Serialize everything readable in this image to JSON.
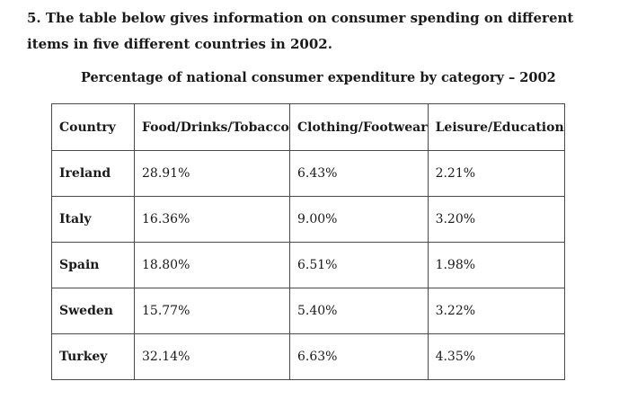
{
  "question": {
    "text": "5. The table below gives information on consumer spending on different items in five different countries in 2002."
  },
  "chart_data": {
    "type": "table",
    "title": "Percentage of national consumer expenditure by category – 2002",
    "columns": [
      "Country",
      "Food/Drinks/Tobacco",
      "Clothing/Footwear",
      "Leisure/Education"
    ],
    "rows": [
      {
        "country": "Ireland",
        "values": [
          "28.91%",
          "6.43%",
          "2.21%"
        ]
      },
      {
        "country": "Italy",
        "values": [
          "16.36%",
          "9.00%",
          "3.20%"
        ]
      },
      {
        "country": "Spain",
        "values": [
          "18.80%",
          "6.51%",
          "1.98%"
        ]
      },
      {
        "country": "Sweden",
        "values": [
          "15.77%",
          "5.40%",
          "3.22%"
        ]
      },
      {
        "country": "Turkey",
        "values": [
          "32.14%",
          "6.63%",
          "4.35%"
        ]
      }
    ]
  }
}
